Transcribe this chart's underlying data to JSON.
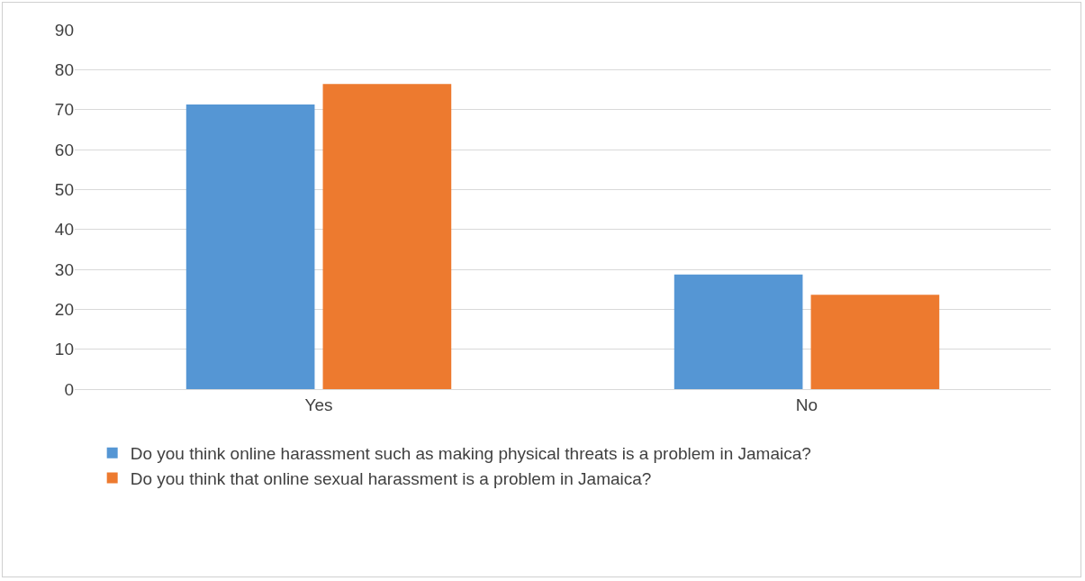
{
  "chart_data": {
    "type": "bar",
    "categories": [
      "Yes",
      "No"
    ],
    "series": [
      {
        "name": "Do you think online harassment such as making physical threats is a problem in Jamaica?",
        "color": "#5596d4",
        "values": [
          71.3,
          28.7
        ]
      },
      {
        "name": "Do you think that online sexual harassment is a problem in Jamaica?",
        "color": "#ed7a2f",
        "values": [
          76.4,
          23.6
        ]
      }
    ],
    "ylim": [
      0,
      90
    ],
    "yticks": [
      0,
      10,
      20,
      30,
      40,
      50,
      60,
      70,
      80,
      90
    ],
    "grid": "y",
    "legend": "bottom"
  }
}
